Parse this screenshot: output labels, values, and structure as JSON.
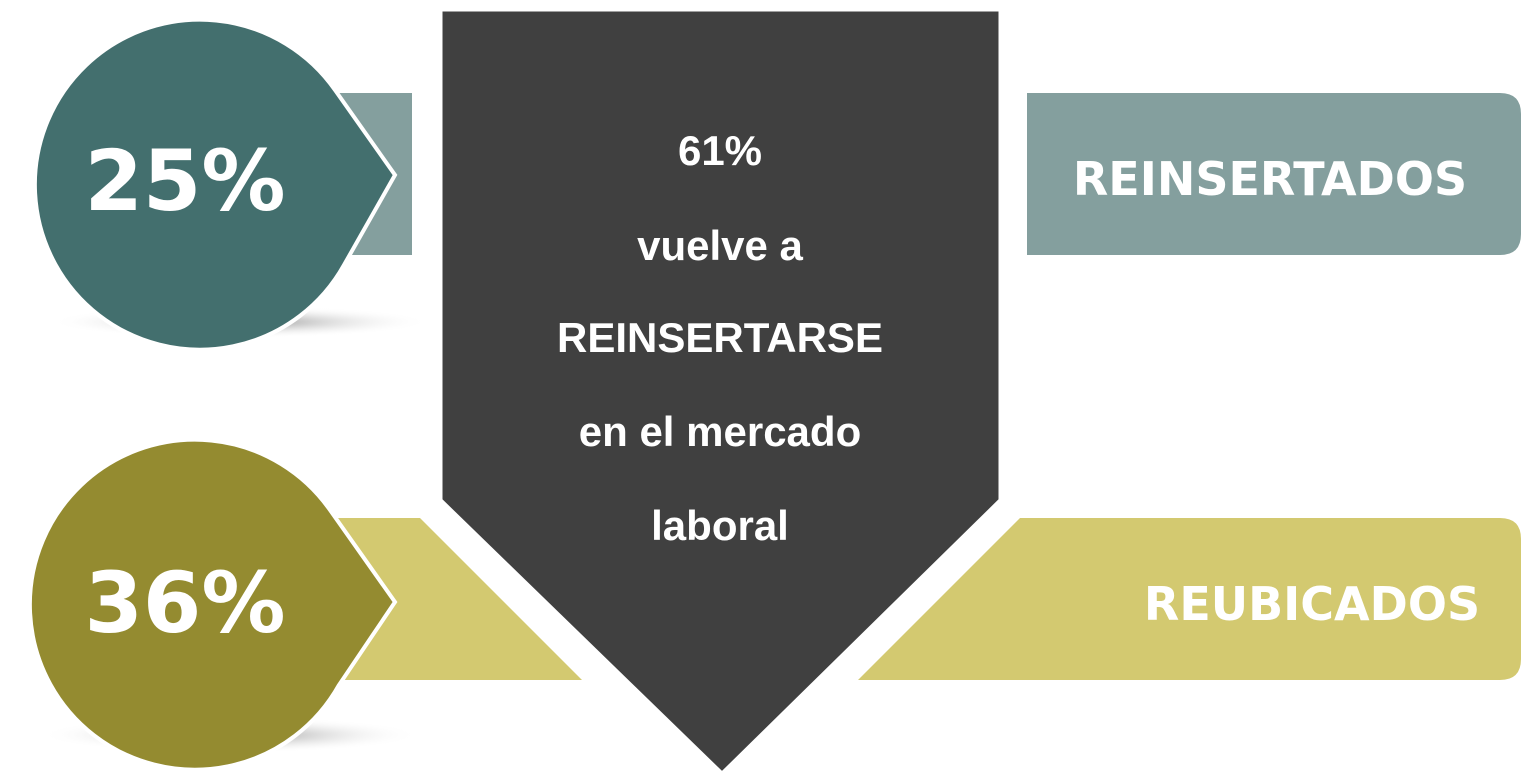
{
  "top": {
    "percent": "25%",
    "label": "REINSERTADOS"
  },
  "bottom": {
    "percent": "36%",
    "label": "REUBICADOS"
  },
  "center": {
    "percent": "61%",
    "lines": [
      "vuelve a",
      "REINSERTARSE",
      "en el mercado",
      "laboral"
    ]
  }
}
